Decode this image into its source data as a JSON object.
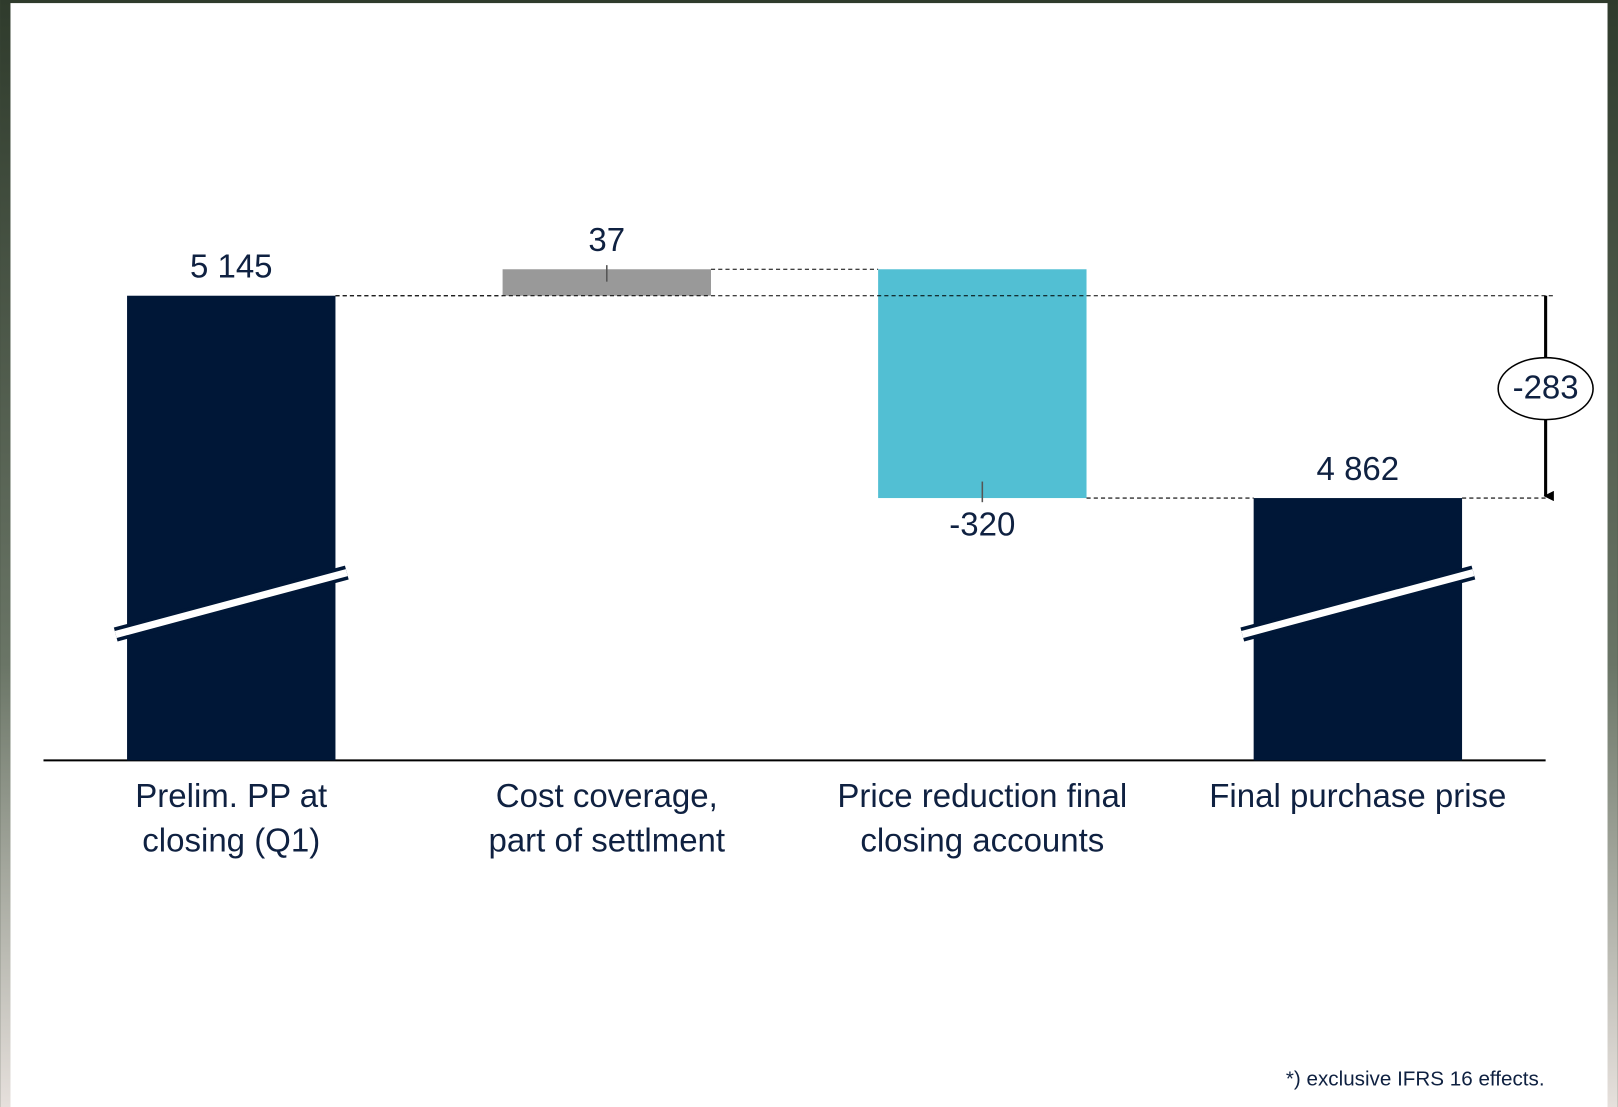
{
  "chart_data": {
    "type": "waterfall",
    "categories": [
      [
        "Prelim. PP at",
        "closing (Q1)"
      ],
      [
        "Cost coverage,",
        "part of settlment"
      ],
      [
        "Price reduction final",
        "closing accounts"
      ],
      [
        "Final purchase prise"
      ]
    ],
    "values": [
      5145,
      37,
      -320,
      4862
    ],
    "value_labels": [
      "5 145",
      "37",
      "-320",
      "4 862"
    ],
    "measure": [
      "total",
      "relative",
      "relative",
      "total"
    ],
    "colors": [
      "#001737",
      "#999999",
      "#52bfd3",
      "#001737"
    ],
    "difference": -283,
    "footnote": "*) exclusive IFRS 16 effects."
  }
}
